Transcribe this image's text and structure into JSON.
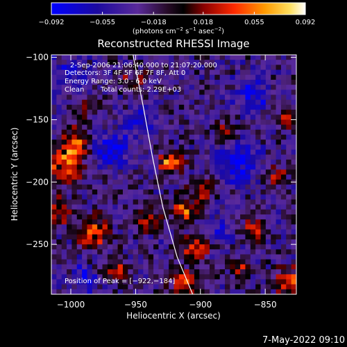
{
  "chart_data": {
    "type": "heatmap",
    "title": "Reconstructed RHESSI Image",
    "xlabel": "Heliocentric X (arcsec)",
    "ylabel": "Heliocentric Y (arcsec)",
    "xlim": [
      -1015,
      -826
    ],
    "ylim": [
      -290,
      -98
    ],
    "xticks": [
      -1000,
      -950,
      -900,
      -850
    ],
    "yticks": [
      -100,
      -150,
      -200,
      -250
    ],
    "xtick_labels": [
      "−1000",
      "−950",
      "−900",
      "−850"
    ],
    "ytick_labels": [
      "−100",
      "−150",
      "−200",
      "−250"
    ],
    "colorbar": {
      "ticks": [
        -0.092,
        -0.055,
        -0.018,
        0.018,
        0.055,
        0.092
      ],
      "tick_labels": [
        "−0.092",
        "−0.055",
        "−0.018",
        "0.018",
        "0.055",
        "0.092"
      ],
      "range": [
        -0.092,
        0.092
      ],
      "unit_parts": [
        "(photons cm",
        "−2",
        " s",
        "−1",
        " asec",
        "−2",
        ")"
      ]
    },
    "annotations": {
      "time_range": "2-Sep-2006 21:06:40.000 to 21:07:20.000",
      "detectors": "Detectors: 3F 4F 5F 6F 7F 8F, Att 0",
      "energy_range": "Energy Range: 3.0 - 6.0 keV",
      "clean": "Clean",
      "total_counts": "Total counts: 2.29E+03",
      "peak_position": "Position of Peak = [−922,−184]"
    },
    "peak": [
      -922,
      -184
    ],
    "limb_curve": [
      [
        -952,
        -98
      ],
      [
        -944,
        -140
      ],
      [
        -937,
        -180
      ],
      [
        -929,
        -220
      ],
      [
        -918,
        -260
      ],
      [
        -906,
        -290
      ]
    ],
    "emission_sources": [
      {
        "x": -922,
        "y": -184,
        "amp": 0.092,
        "r": 6
      },
      {
        "x": -1003,
        "y": -186,
        "amp": 0.075,
        "r": 10
      },
      {
        "x": -996,
        "y": -168,
        "amp": 0.07,
        "r": 7
      },
      {
        "x": -982,
        "y": -240,
        "amp": 0.062,
        "r": 9
      },
      {
        "x": -1010,
        "y": -222,
        "amp": 0.06,
        "r": 7
      },
      {
        "x": -912,
        "y": -222,
        "amp": 0.072,
        "r": 7
      },
      {
        "x": -903,
        "y": -252,
        "amp": 0.062,
        "r": 8
      },
      {
        "x": -896,
        "y": -206,
        "amp": 0.055,
        "r": 6
      },
      {
        "x": -912,
        "y": -282,
        "amp": 0.065,
        "r": 7
      },
      {
        "x": -858,
        "y": -238,
        "amp": 0.06,
        "r": 6
      },
      {
        "x": -832,
        "y": -280,
        "amp": 0.065,
        "r": 8
      },
      {
        "x": -832,
        "y": -150,
        "amp": 0.05,
        "r": 6
      },
      {
        "x": -842,
        "y": -195,
        "amp": 0.045,
        "r": 6
      },
      {
        "x": -952,
        "y": -120,
        "amp": 0.045,
        "r": 6
      },
      {
        "x": -965,
        "y": -272,
        "amp": 0.05,
        "r": 6
      },
      {
        "x": -880,
        "y": -160,
        "amp": 0.045,
        "r": 6
      },
      {
        "x": -985,
        "y": -140,
        "amp": 0.04,
        "r": 6
      },
      {
        "x": -940,
        "y": -230,
        "amp": 0.05,
        "r": 7
      },
      {
        "x": -870,
        "y": -270,
        "amp": 0.045,
        "r": 6
      }
    ],
    "negative_sources": [
      {
        "x": -968,
        "y": -175,
        "amp": -0.06,
        "r": 10
      },
      {
        "x": -945,
        "y": -150,
        "amp": -0.05,
        "r": 8
      },
      {
        "x": -870,
        "y": -185,
        "amp": -0.055,
        "r": 12
      },
      {
        "x": -860,
        "y": -130,
        "amp": -0.05,
        "r": 10
      },
      {
        "x": -1000,
        "y": -115,
        "amp": -0.04,
        "r": 10
      },
      {
        "x": -990,
        "y": -278,
        "amp": -0.04,
        "r": 8
      },
      {
        "x": -885,
        "y": -240,
        "amp": -0.04,
        "r": 8
      }
    ]
  },
  "footer": {
    "date_stamp": "7-May-2022 09:10"
  }
}
